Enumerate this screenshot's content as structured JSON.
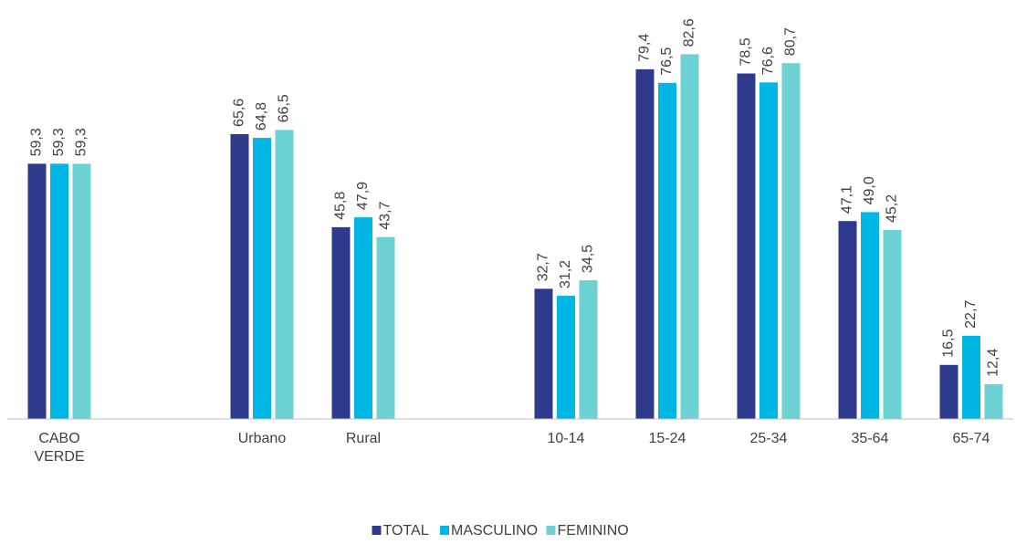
{
  "chart_data": {
    "type": "bar",
    "categories": [
      "CABO VERDE",
      null,
      "Urbano",
      "Rural",
      null,
      "10-14",
      "15-24",
      "25-34",
      "35-64",
      "65-74"
    ],
    "series": [
      {
        "name": "TOTAL",
        "color": "#2e3a8c",
        "values": [
          59.3,
          null,
          65.6,
          45.8,
          null,
          32.7,
          79.4,
          78.5,
          47.1,
          16.5
        ],
        "value_labels": [
          "59,3",
          null,
          "65,6",
          "45,8",
          null,
          "32,7",
          "79,4",
          "78,5",
          "47,1",
          "16,5"
        ]
      },
      {
        "name": "MASCULINO",
        "color": "#00b6e4",
        "values": [
          59.3,
          null,
          64.8,
          47.9,
          null,
          31.2,
          76.5,
          76.6,
          49.0,
          22.7
        ],
        "value_labels": [
          "59,3",
          null,
          "64,8",
          "47,9",
          null,
          "31,2",
          "76,5",
          "76,6",
          "49,0",
          "22,7"
        ]
      },
      {
        "name": "FEMININO",
        "color": "#6dd2d4",
        "values": [
          59.3,
          null,
          66.5,
          43.7,
          null,
          34.5,
          82.6,
          80.7,
          45.2,
          12.4
        ],
        "value_labels": [
          "59,3",
          null,
          "66,5",
          "43,7",
          null,
          "34,5",
          "82,6",
          "80,7",
          "45,2",
          "12,4"
        ]
      }
    ],
    "ylim": [
      5,
      90
    ],
    "legend": "bottom"
  }
}
